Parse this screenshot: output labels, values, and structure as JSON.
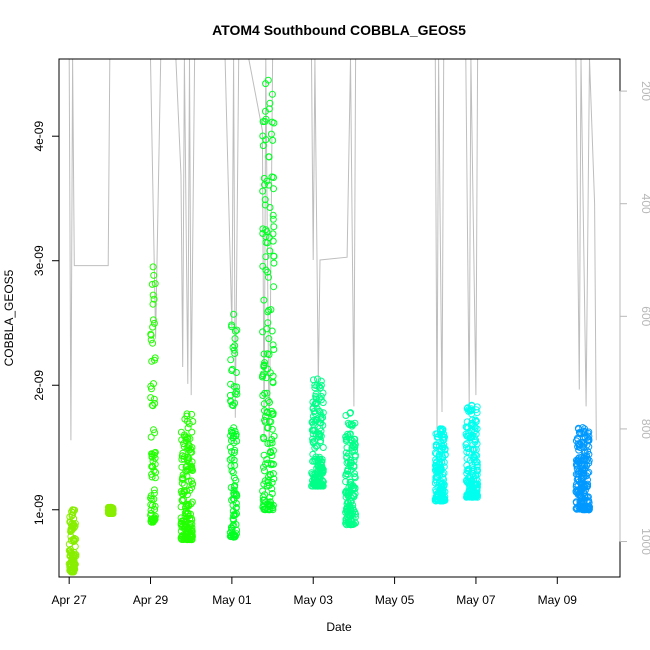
{
  "chart_data": {
    "type": "scatter",
    "title": "ATOM4 Southbound COBBLA_GEOS5",
    "xlabel": "Date",
    "ylabel": "COBBLA_GEOS5",
    "x_unit": "days",
    "xlim": [
      "Apr 26 18:00",
      "May 10 13:00"
    ],
    "ylim": [
      4.6e-10,
      4.62e-09
    ],
    "x_ticks": [
      "Apr 27",
      "Apr 29",
      "May 01",
      "May 03",
      "May 05",
      "May 07",
      "May 09"
    ],
    "y_ticks": [
      {
        "value": 1e-09,
        "label": "1e-09"
      },
      {
        "value": 2e-09,
        "label": "2e-09"
      },
      {
        "value": 3e-09,
        "label": "3e-09"
      },
      {
        "value": 4e-09,
        "label": "4e-09"
      }
    ],
    "y2_label": "",
    "y2_ticks": [
      "200",
      "400",
      "600",
      "800",
      "1000"
    ],
    "y2_lim": [
      1063,
      143
    ],
    "y2_inverted": true,
    "grid": false,
    "series": [
      {
        "color": "#88ee00",
        "segments": [
          {
            "x_start": "Apr 27 00:00",
            "x_end": "Apr 27 04:00",
            "y_min": 5e-10,
            "y_max": 1e-09
          },
          {
            "x_start": "Apr 27 23:00",
            "x_end": "Apr 28 02:00",
            "y_min": 9.7e-10,
            "y_max": 1.02e-09
          }
        ]
      },
      {
        "color": "#22ff00",
        "segments": [
          {
            "x_start": "Apr 29 00:00",
            "x_end": "Apr 29 03:00",
            "y_min": 9e-10,
            "y_max": 2.95e-09
          },
          {
            "x_start": "Apr 29 18:00",
            "x_end": "Apr 30 01:00",
            "y_min": 7.6e-10,
            "y_max": 1.77e-09
          }
        ]
      },
      {
        "color": "#00ff22",
        "segments": [
          {
            "x_start": "Apr 30 23:00",
            "x_end": "May 01 03:00",
            "y_min": 7.8e-10,
            "y_max": 2.57e-09
          },
          {
            "x_start": "May 01 18:00",
            "x_end": "May 02 01:00",
            "y_min": 1e-09,
            "y_max": 4.45e-09
          }
        ]
      },
      {
        "color": "#00ff88",
        "segments": [
          {
            "x_start": "May 02 23:00",
            "x_end": "May 03 06:00",
            "y_min": 1.19e-09,
            "y_max": 2.05e-09
          },
          {
            "x_start": "May 03 19:00",
            "x_end": "May 04 01:00",
            "y_min": 8.8e-10,
            "y_max": 1.78e-09
          }
        ]
      },
      {
        "color": "#00ffee",
        "segments": [
          {
            "x_start": "May 06 00:00",
            "x_end": "May 06 06:00",
            "y_min": 1.07e-09,
            "y_max": 1.65e-09
          },
          {
            "x_start": "May 06 18:00",
            "x_end": "May 07 01:00",
            "y_min": 1.1e-09,
            "y_max": 1.84e-09
          }
        ]
      },
      {
        "color": "#0099ff",
        "segments": [
          {
            "x_start": "May 09 11:00",
            "x_end": "May 09 19:00",
            "y_min": 1e-09,
            "y_max": 1.66e-09
          }
        ]
      }
    ],
    "altitude_profile": {
      "color": "#bebebe",
      "points": [
        [
          "Apr 27 00:00",
          143
        ],
        [
          "Apr 27 01:00",
          820
        ],
        [
          "Apr 27 02:00",
          143
        ],
        [
          "Apr 27 03:00",
          510
        ],
        [
          "Apr 27 23:00",
          510
        ],
        [
          "Apr 28 00:00",
          143
        ],
        [
          "Apr 29 00:00",
          143
        ],
        [
          "Apr 29 03:00",
          640
        ],
        [
          "Apr 29 06:00",
          143
        ],
        [
          "Apr 29 15:00",
          143
        ],
        [
          "Apr 29 18:00",
          350
        ],
        [
          "Apr 29 19:00",
          690
        ],
        [
          "Apr 29 20:00",
          143
        ],
        [
          "Apr 29 22:00",
          720
        ],
        [
          "Apr 29 23:00",
          143
        ],
        [
          "Apr 30 00:00",
          740
        ],
        [
          "Apr 30 02:00",
          143
        ],
        [
          "Apr 30 20:00",
          143
        ],
        [
          "May 01 00:00",
          620
        ],
        [
          "May 01 01:00",
          143
        ],
        [
          "May 01 02:00",
          780
        ],
        [
          "May 01 04:00",
          143
        ],
        [
          "May 01 10:00",
          143
        ],
        [
          "May 01 18:00",
          270
        ],
        [
          "May 01 19:00",
          820
        ],
        [
          "May 01 20:00",
          143
        ],
        [
          "May 01 22:00",
          850
        ],
        [
          "May 02 00:00",
          143
        ],
        [
          "May 02 23:00",
          143
        ],
        [
          "May 03 00:00",
          500
        ],
        [
          "May 03 01:00",
          143
        ],
        [
          "May 03 03:00",
          720
        ],
        [
          "May 03 04:00",
          500
        ],
        [
          "May 03 20:00",
          495
        ],
        [
          "May 03 22:00",
          143
        ],
        [
          "May 04 00:00",
          760
        ],
        [
          "May 04 01:00",
          143
        ],
        [
          "May 06 00:00",
          143
        ],
        [
          "May 06 01:00",
          800
        ],
        [
          "May 06 02:00",
          143
        ],
        [
          "May 06 04:00",
          770
        ],
        [
          "May 06 05:00",
          143
        ],
        [
          "May 06 18:00",
          143
        ],
        [
          "May 06 20:00",
          760
        ],
        [
          "May 06 21:00",
          143
        ],
        [
          "May 07 00:00",
          740
        ],
        [
          "May 07 01:00",
          143
        ],
        [
          "May 09 11:00",
          143
        ],
        [
          "May 09 13:00",
          730
        ],
        [
          "May 09 14:00",
          143
        ],
        [
          "May 09 17:00",
          760
        ],
        [
          "May 09 19:00",
          143
        ],
        [
          "May 09 22:00",
          400
        ],
        [
          "May 09 23:00",
          820
        ]
      ]
    }
  }
}
